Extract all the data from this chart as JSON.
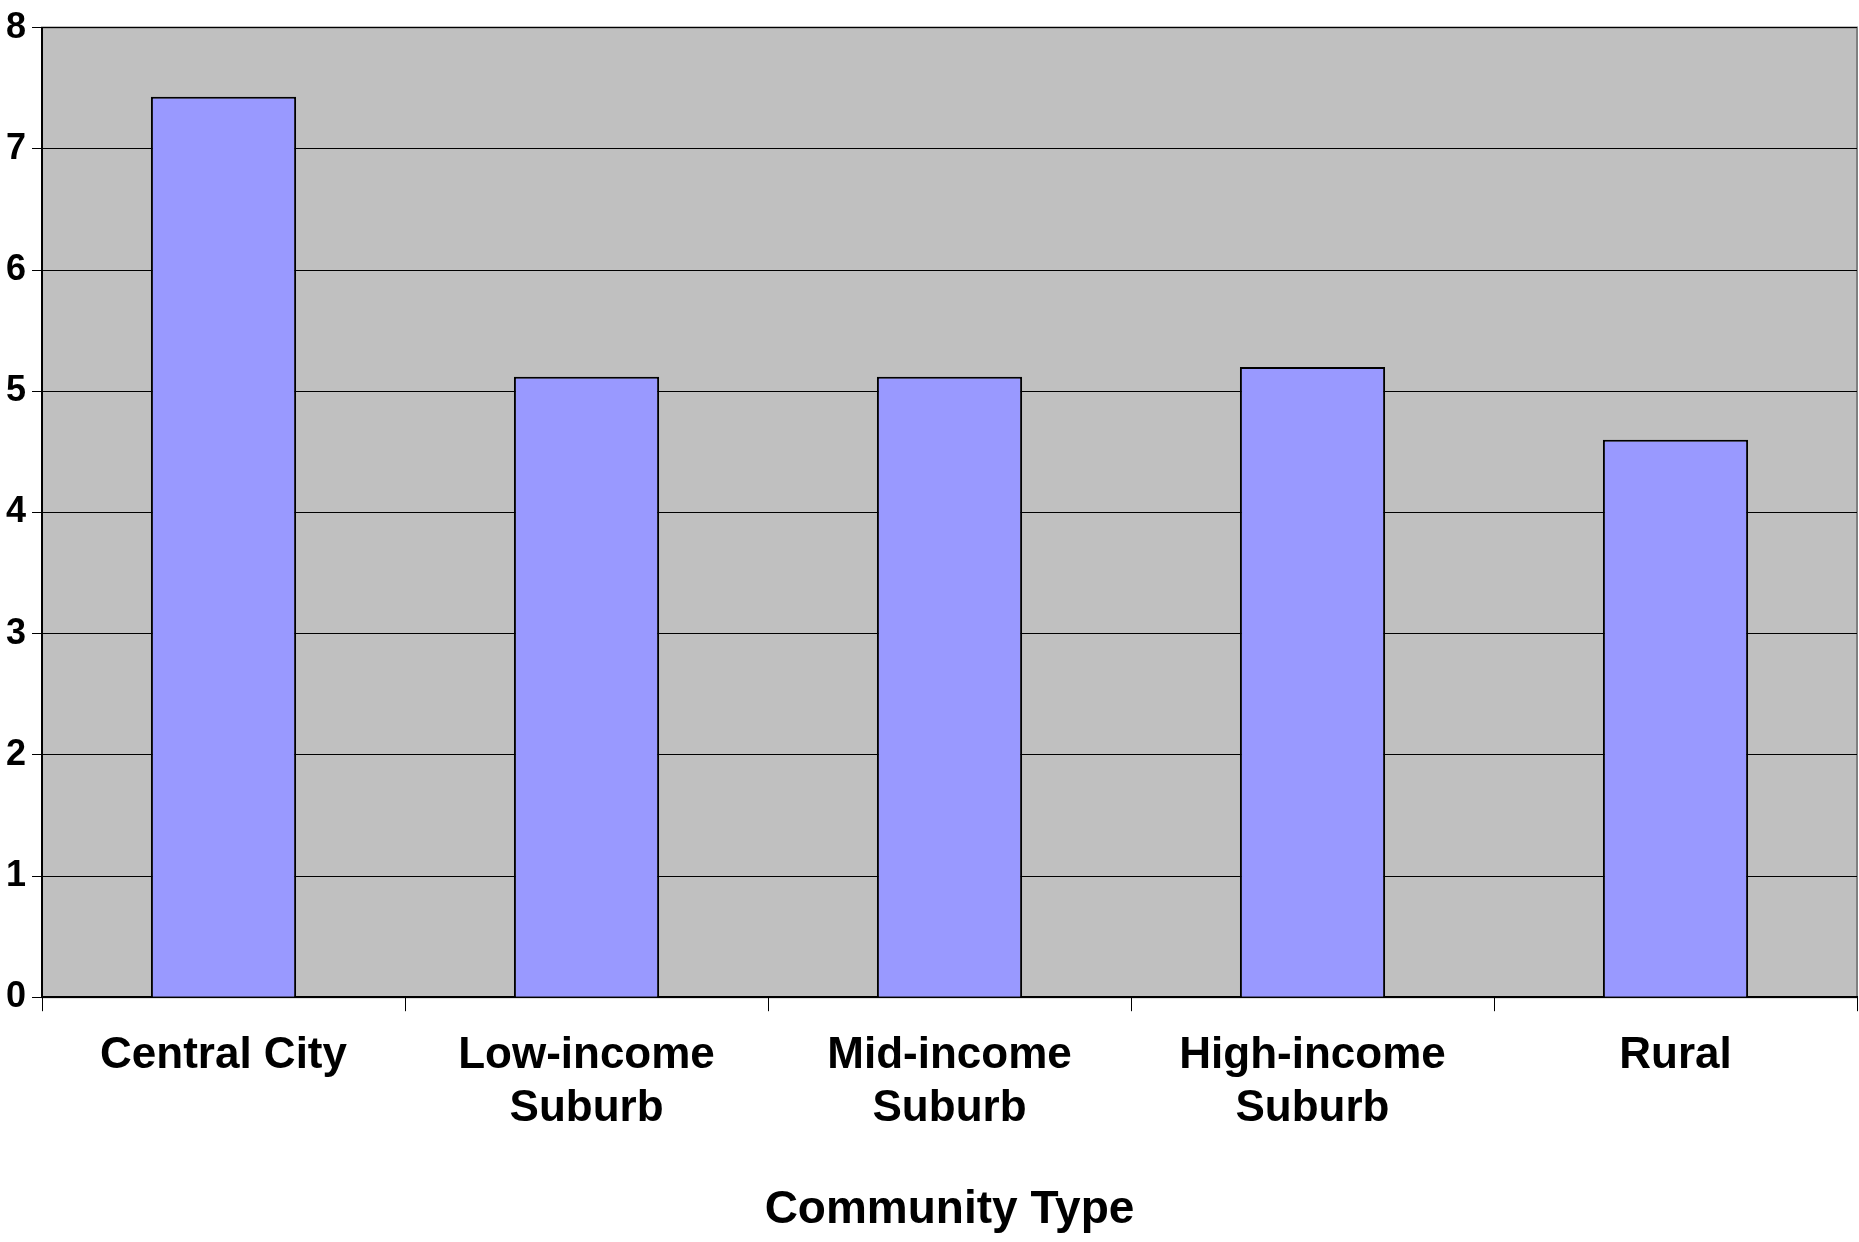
{
  "chart_data": {
    "type": "bar",
    "xlabel": "Community Type",
    "categories": [
      "Central City",
      "Low-income Suburb",
      "Mid-income Suburb",
      "High-income Suburb",
      "Rural"
    ],
    "values": [
      7.43,
      5.12,
      5.12,
      5.2,
      4.6
    ],
    "color": "#9999ff",
    "ylim": [
      0,
      8
    ],
    "yticks": [
      0,
      1,
      2,
      3,
      4,
      5,
      6,
      7,
      8
    ],
    "grid": "y",
    "legend": false
  }
}
